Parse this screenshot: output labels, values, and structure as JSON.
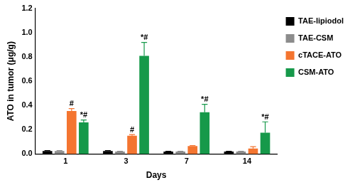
{
  "chart_data": {
    "type": "bar",
    "categories": [
      "1",
      "3",
      "7",
      "14"
    ],
    "x_label": "Days",
    "y_label": "ATO in tumor (μg/g)",
    "series": [
      {
        "name": "TAE-lipiodol",
        "color": "#000000",
        "values": [
          0.025,
          0.025,
          0.02,
          0.02
        ],
        "errors": [
          0.003,
          0.003,
          0.002,
          0.002
        ],
        "annotations": [
          null,
          null,
          null,
          null
        ]
      },
      {
        "name": "TAE-CSM",
        "color": "#8c8c8c",
        "values": [
          0.025,
          0.02,
          0.02,
          0.02
        ],
        "errors": [
          0.003,
          0.002,
          0.002,
          0.002
        ],
        "annotations": [
          null,
          null,
          null,
          null
        ]
      },
      {
        "name": "cTACE-ATO",
        "color": "#f47530",
        "values": [
          0.355,
          0.15,
          0.065,
          0.045
        ],
        "errors": [
          0.02,
          0.01,
          0.005,
          0.015
        ],
        "annotations": [
          "#",
          "#",
          null,
          null
        ]
      },
      {
        "name": "CSM-ATO",
        "color": "#16994a",
        "values": [
          0.26,
          0.81,
          0.345,
          0.175
        ],
        "errors": [
          0.02,
          0.11,
          0.065,
          0.09
        ],
        "annotations": [
          "*#",
          "*#",
          "*#",
          "*#"
        ]
      }
    ],
    "ylim": [
      0,
      1.2
    ],
    "yticks": [
      {
        "value": 0,
        "label": "0.0"
      },
      0.2,
      0.4,
      0.6,
      0.8,
      {
        "value": 1,
        "label": "1.0"
      },
      1.2
    ],
    "grid": false,
    "legend": "right"
  }
}
